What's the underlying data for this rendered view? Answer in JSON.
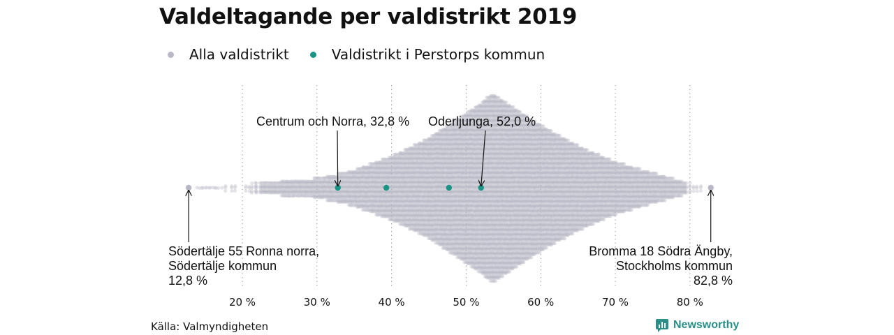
{
  "title": "Valdeltagande per valdistrikt 2019",
  "legend": [
    {
      "label": "Alla valdistrikt",
      "color": "#b9b8c6"
    },
    {
      "label": "Valdistrikt i Perstorps kommun",
      "color": "#1a9484"
    }
  ],
  "source": "Källa: Valmyndigheten",
  "brand": "Newsworthy",
  "chart_data": {
    "type": "scatter",
    "title": "Valdeltagande per valdistrikt 2019",
    "xlabel": "",
    "ylabel": "",
    "xlim": [
      10,
      87
    ],
    "x_ticks": [
      20,
      30,
      40,
      50,
      60,
      70,
      80
    ],
    "x_tick_labels": [
      "20 %",
      "30 %",
      "40 %",
      "50 %",
      "60 %",
      "70 %",
      "80 %"
    ],
    "grid": "vertical dotted",
    "legend_position": "top-left",
    "series": [
      {
        "name": "Alla valdistrikt",
        "color": "#b9b8c6",
        "distribution": "beeswarm of all voting districts, range 12.8–82.8 %, densest around 54 %"
      },
      {
        "name": "Valdistrikt i Perstorps kommun",
        "color": "#1a9484",
        "values": [
          32.8,
          39.3,
          47.7,
          52.0
        ]
      }
    ],
    "annotations": [
      {
        "x": 32.8,
        "lines": [
          "Centrum och Norra, 32,8 %"
        ]
      },
      {
        "x": 52.0,
        "lines": [
          "Oderljunga, 52,0 %"
        ]
      },
      {
        "x": 12.8,
        "lines": [
          "Södertälje 55 Ronna norra,",
          "Södertälje kommun",
          "12,8 %"
        ]
      },
      {
        "x": 82.8,
        "lines": [
          "Bromma 18 Södra Ängby,",
          "Stockholms kommun",
          "82,8 %"
        ]
      }
    ]
  }
}
